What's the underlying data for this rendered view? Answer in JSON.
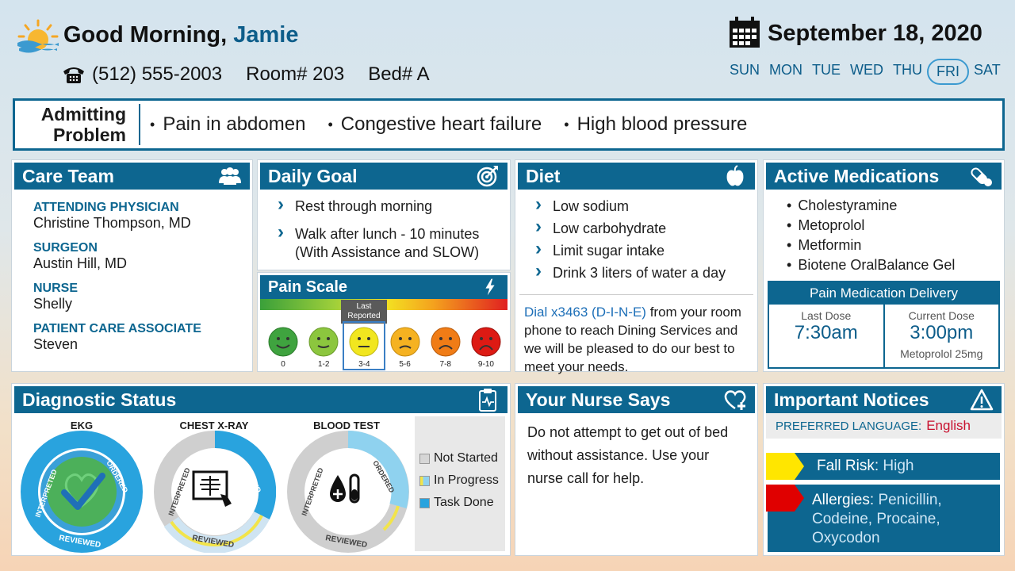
{
  "header": {
    "greeting_prefix": "Good Morning,",
    "patient_name": "Jamie",
    "phone": "(512) 555-2003",
    "room": "Room# 203",
    "bed": "Bed# A",
    "date": "September 18, 2020",
    "weekdays": [
      "SUN",
      "MON",
      "TUE",
      "WED",
      "THU",
      "FRI",
      "SAT"
    ],
    "current_weekday": "FRI"
  },
  "admitting": {
    "label_line1": "Admitting",
    "label_line2": "Problem",
    "problems": [
      "Pain in abdomen",
      "Congestive heart failure",
      "High blood pressure"
    ]
  },
  "care_team": {
    "title": "Care Team",
    "members": [
      {
        "role": "ATTENDING PHYSICIAN",
        "name": "Christine Thompson, MD"
      },
      {
        "role": "SURGEON",
        "name": "Austin Hill, MD"
      },
      {
        "role": "NURSE",
        "name": "Shelly"
      },
      {
        "role": "PATIENT CARE ASSOCIATE",
        "name": "Steven"
      }
    ]
  },
  "daily_goal": {
    "title": "Daily Goal",
    "items": [
      "Rest through morning",
      "Walk after lunch - 10 minutes (With Assistance and SLOW)"
    ]
  },
  "pain_scale": {
    "title": "Pain Scale",
    "last_reported_line1": "Last",
    "last_reported_line2": "Reported",
    "levels": [
      "0",
      "1-2",
      "3-4",
      "5-6",
      "7-8",
      "9-10"
    ],
    "selected": "3-4",
    "face_colors": [
      "#3fa33f",
      "#8cc63e",
      "#f1e61f",
      "#f5b221",
      "#f07c16",
      "#dd1a14"
    ]
  },
  "diet": {
    "title": "Diet",
    "items": [
      "Low sodium",
      "Low carbohydrate",
      "Limit sugar intake",
      "Drink 3 liters of water a day"
    ],
    "dial": "Dial x3463 (D-I-N-E)",
    "note": " from your room phone to reach Dining Services and we will be pleased to do our best to meet your needs."
  },
  "medications": {
    "title": "Active Medications",
    "items": [
      "Cholestyramine",
      "Metoprolol",
      "Metformin",
      "Biotene OralBalance Gel"
    ],
    "delivery_title": "Pain Medication Delivery",
    "last_dose_label": "Last Dose",
    "last_dose_time": "7:30am",
    "current_dose_label": "Current Dose",
    "current_dose_time": "3:00pm",
    "current_dose_med": "Metoprolol 25mg"
  },
  "diagnostic": {
    "title": "Diagnostic Status",
    "tests": [
      {
        "name": "EKG",
        "status": "Task Done"
      },
      {
        "name": "CHEST X-RAY",
        "status": "In Progress"
      },
      {
        "name": "BLOOD TEST",
        "status": "In Progress"
      }
    ],
    "ring_labels": [
      "INTERPRETED",
      "ORDERED",
      "REVIEWED"
    ],
    "legend": [
      "Not Started",
      "In Progress",
      "Task Done"
    ]
  },
  "nurse": {
    "title": "Your Nurse Says",
    "message": "Do not attempt to get out of bed without assistance.  Use your nurse call for help."
  },
  "notices": {
    "title": "Important Notices",
    "language_label": "PREFERRED LANGUAGE:",
    "language_value": "English",
    "fall_label": "Fall Risk:",
    "fall_value": "High",
    "allergy_label": "Allergies:",
    "allergy_value": "Penicillin, Codeine, Procaine, Oxycodon"
  }
}
